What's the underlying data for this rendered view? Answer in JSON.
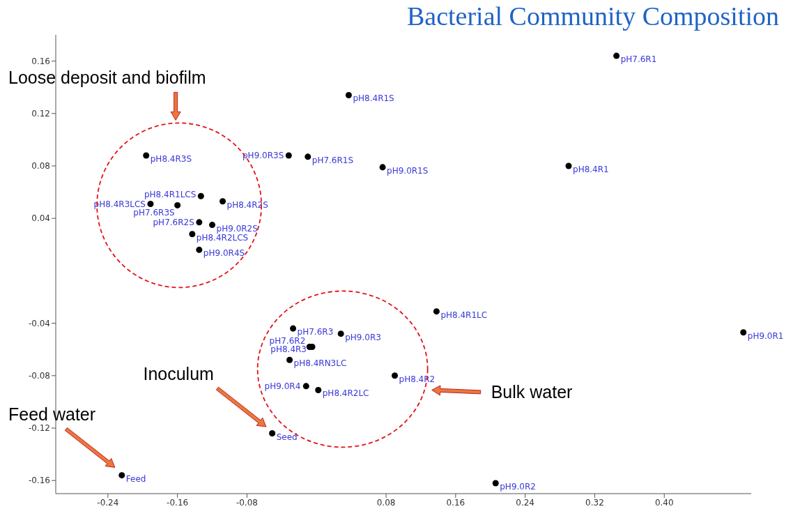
{
  "chart_data": {
    "type": "scatter",
    "title": "Bacterial Community Composition",
    "annotations": [
      "Loose deposit and biofilm",
      "Bulk water",
      "Inoculum",
      "Feed water"
    ],
    "xlim": [
      -0.3,
      0.5
    ],
    "ylim": [
      -0.17,
      0.18
    ],
    "xticks": [
      -0.24,
      -0.16,
      -0.08,
      0.08,
      0.16,
      0.24,
      0.32,
      {
        "value": 0.4,
        "label": "0.40"
      }
    ],
    "yticks": [
      -0.16,
      -0.12,
      -0.08,
      -0.04,
      0.04,
      0.08,
      0.12,
      0.16
    ],
    "grid": false,
    "marker": "circle",
    "series": [
      {
        "color": "#000000",
        "x": [
          0.345,
          0.037,
          -0.01,
          -0.032,
          0.076,
          0.29,
          -0.196,
          -0.133,
          -0.191,
          -0.16,
          -0.108,
          -0.135,
          -0.12,
          -0.143,
          -0.135,
          0.138,
          -0.027,
          0.028,
          -0.008,
          -0.005,
          -0.031,
          0.09,
          -0.012,
          0.002,
          -0.051,
          -0.224,
          0.206,
          0.491
        ],
        "values": [
          0.164,
          0.134,
          0.087,
          0.088,
          0.079,
          0.08,
          0.088,
          0.057,
          0.051,
          0.05,
          0.053,
          0.037,
          0.035,
          0.028,
          0.016,
          -0.031,
          -0.044,
          -0.048,
          -0.058,
          -0.058,
          -0.068,
          -0.08,
          -0.088,
          -0.091,
          -0.124,
          -0.156,
          -0.162,
          -0.047
        ],
        "value_labels": [
          "pH7.6R1",
          "pH8.4R1S",
          "pH7.6R1S",
          "pH9.0R3S",
          "pH9.0R1S",
          "pH8.4R1",
          "pH8.4R3S",
          "pH8.4R1LCS",
          "pH8.4R3LCS",
          "pH7.6R3S",
          "pH8.4R2S",
          "pH7.6R2S",
          "pH9.0R2S",
          "pH8.4R2LCS",
          "pH9.0R4S",
          "pH8.4R1LC",
          "pH7.6R3",
          "pH9.0R3",
          "pH7.6R2",
          "pH8.4R3",
          "pH8.4RN3LC",
          "pH8.4R2",
          "pH9.0R4",
          "pH8.4R2LC",
          "Seed",
          "Feed",
          "pH9.0R2",
          "pH9.0R1"
        ]
      }
    ]
  }
}
